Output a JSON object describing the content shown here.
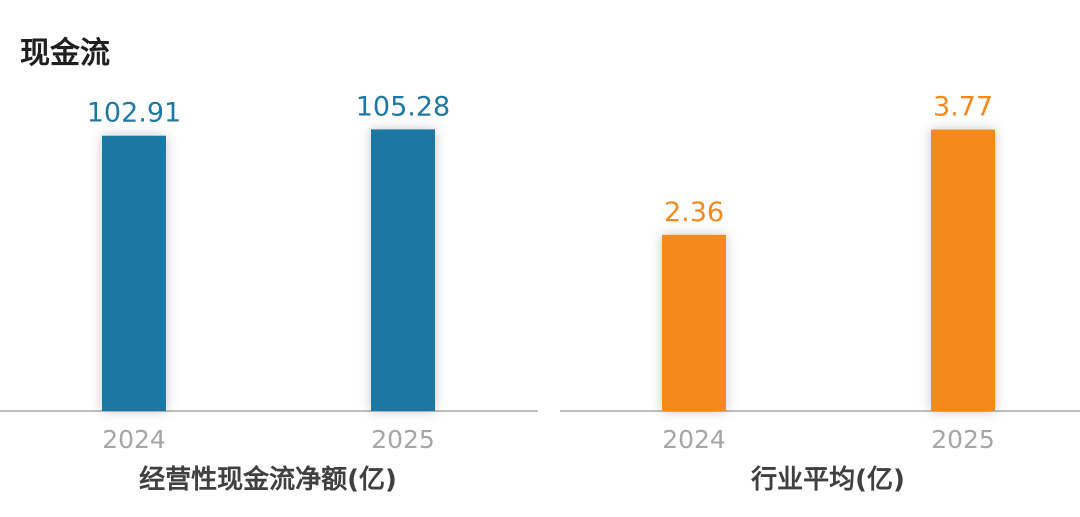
{
  "page": {
    "title": "现金流"
  },
  "chart_data": [
    {
      "type": "bar",
      "categories": [
        "2024",
        "2025"
      ],
      "values": [
        102.91,
        105.28
      ],
      "value_labels": [
        "102.91",
        "105.28"
      ],
      "xlabel": "经营性现金流净额(亿)",
      "ylim": [
        0,
        120
      ],
      "color": "#1f77a4",
      "grid": false
    },
    {
      "type": "bar",
      "categories": [
        "2024",
        "2025"
      ],
      "values": [
        2.36,
        3.77
      ],
      "value_labels": [
        "2.36",
        "3.77"
      ],
      "xlabel": "行业平均(亿)",
      "ylim": [
        0,
        4.3
      ],
      "color": "#f5891a",
      "grid": false
    }
  ]
}
